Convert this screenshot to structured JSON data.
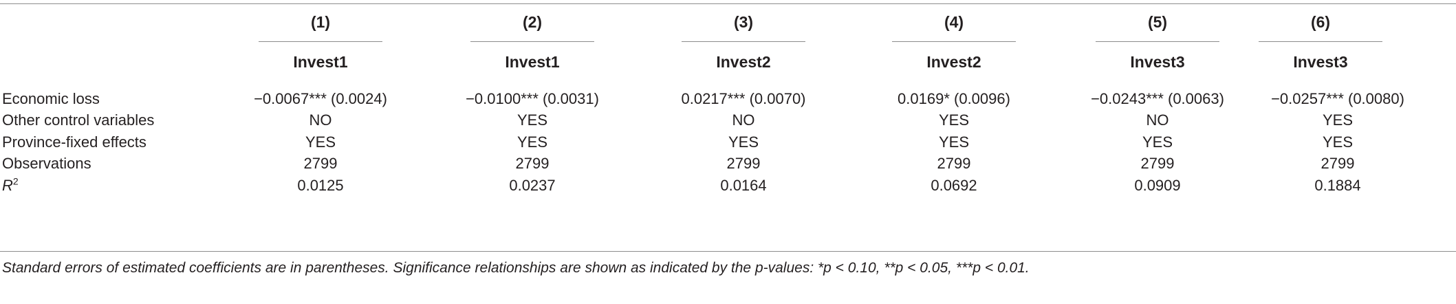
{
  "table": {
    "columns": [
      {
        "number": "(1)",
        "dependent": "Invest1"
      },
      {
        "number": "(2)",
        "dependent": "Invest1"
      },
      {
        "number": "(3)",
        "dependent": "Invest2"
      },
      {
        "number": "(4)",
        "dependent": "Invest2"
      },
      {
        "number": "(5)",
        "dependent": "Invest3"
      },
      {
        "number": "(6)",
        "dependent": "Invest3"
      }
    ],
    "rows": [
      {
        "label": "Economic loss",
        "cells": [
          "−0.0067*** (0.0024)",
          "−0.0100*** (0.0031)",
          "0.0217*** (0.0070)",
          "0.0169* (0.0096)",
          "−0.0243*** (0.0063)",
          "−0.0257*** (0.0080)"
        ]
      },
      {
        "label": "Other control variables",
        "cells": [
          "NO",
          "YES",
          "NO",
          "YES",
          "NO",
          "YES"
        ]
      },
      {
        "label": "Province-fixed effects",
        "cells": [
          "YES",
          "YES",
          "YES",
          "YES",
          "YES",
          "YES"
        ]
      },
      {
        "label": "Observations",
        "cells": [
          "2799",
          "2799",
          "2799",
          "2799",
          "2799",
          "2799"
        ]
      },
      {
        "label_base": "R",
        "label_sup": "2",
        "cells": [
          "0.0125",
          "0.0237",
          "0.0164",
          "0.0692",
          "0.0909",
          "0.1884"
        ]
      }
    ]
  },
  "footnote": "Standard errors of estimated coefficients are in parentheses. Significance relationships are shown as indicated by the p-values: *p < 0.10, **p < 0.05, ***p < 0.01."
}
